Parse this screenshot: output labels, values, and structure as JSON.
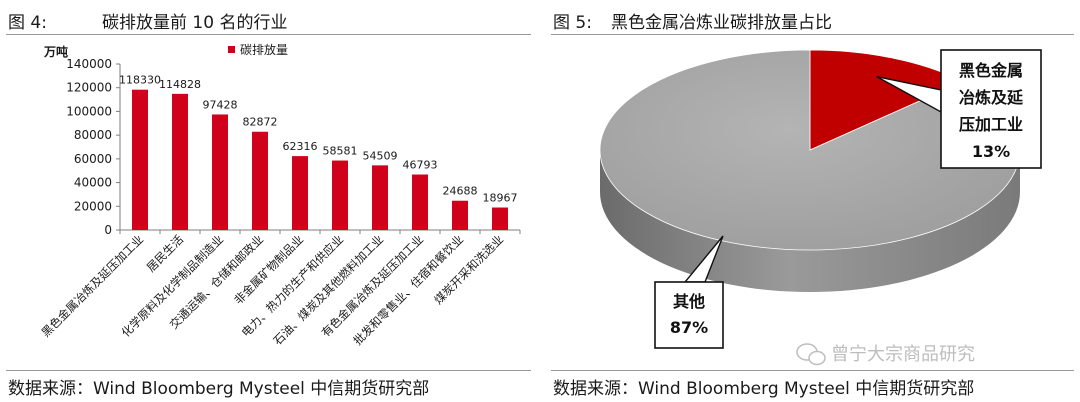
{
  "left": {
    "fig_no": "图 4:",
    "title": "碳排放量前 10 名的行业",
    "source": "数据来源：Wind Bloomberg Mysteel 中信期货研究部"
  },
  "right": {
    "fig_no": "图 5:",
    "title": "黑色金属冶炼业碳排放量占比",
    "source": "数据来源：Wind Bloomberg Mysteel 中信期货研究部",
    "watermark": "曾宁大宗商品研究"
  },
  "colors": {
    "bar": "#d0021b",
    "pie_main": "#c00000",
    "pie_other": "#a6a6a6"
  },
  "chart_data": [
    {
      "type": "bar",
      "title": "碳排放量前 10 名的行业",
      "ylabel": "万吨",
      "legend": "碳排放量",
      "legend_position": "top",
      "ylim": [
        0,
        140000
      ],
      "yticks": [
        "0",
        "20000",
        "40000",
        "60000",
        "80000",
        "100000",
        "120000",
        "140000"
      ],
      "categories": [
        "黑色金属冶炼及延压加工业",
        "居民生活",
        "化学原料及化学制品制造业",
        "交通运输、仓储和邮政业",
        "非金属矿物制品业",
        "电力、热力的生产和供应业",
        "石油、煤炭及其他燃料加工业",
        "有色金属冶炼及延压加工业",
        "批发和零售业、住宿和餐饮业",
        "煤炭开采和洗选业"
      ],
      "values": [
        118330,
        114828,
        97428,
        82872,
        62316,
        58581,
        54509,
        46793,
        24688,
        18967
      ],
      "data_labels": [
        "118330",
        "114828",
        "97428",
        "82872",
        "62316",
        "58581",
        "54509",
        "46793",
        "24688",
        "18967"
      ]
    },
    {
      "type": "pie",
      "title": "黑色金属冶炼业碳排放量占比",
      "slices": [
        {
          "label_lines": [
            "黑色金属",
            "冶炼及延",
            "压加工业"
          ],
          "percent_label": "13%",
          "value": 13
        },
        {
          "label_lines": [
            "其他"
          ],
          "percent_label": "87%",
          "value": 87
        }
      ]
    }
  ]
}
